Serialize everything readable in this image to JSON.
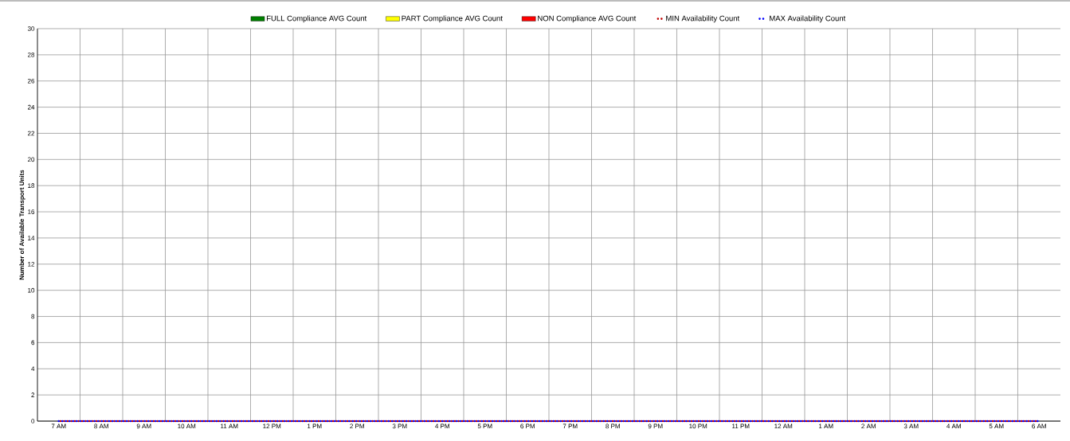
{
  "chart_data": {
    "type": "bar",
    "stacked": true,
    "ylabel": "Number of Available Transport Units",
    "categories": [
      "7 AM",
      "8 AM",
      "9 AM",
      "10 AM",
      "11 AM",
      "12 PM",
      "1 PM",
      "2 PM",
      "3 PM",
      "4 PM",
      "5 PM",
      "6 PM",
      "7 PM",
      "8 PM",
      "9 PM",
      "10 PM",
      "11 PM",
      "12 AM",
      "1 AM",
      "2 AM",
      "3 AM",
      "4 AM",
      "5 AM",
      "6 AM"
    ],
    "series": [
      {
        "name": "FULL Compliance AVG Count",
        "color": "#008000",
        "values": [
          0,
          0,
          0,
          0,
          0,
          0,
          0,
          0,
          0,
          0,
          0,
          0,
          0,
          0,
          0,
          0,
          0,
          0,
          0,
          0,
          0,
          0,
          0,
          0
        ]
      },
      {
        "name": "PART Compliance AVG Count",
        "color": "#ffff00",
        "values": [
          0,
          0,
          0,
          0,
          0,
          0,
          0,
          0,
          0,
          0,
          0,
          0,
          0,
          0,
          0,
          0,
          0,
          0,
          0,
          0,
          0,
          0,
          0,
          0
        ]
      },
      {
        "name": "NON Compliance AVG Count",
        "color": "#ff0000",
        "values": [
          0,
          0,
          0,
          0,
          0,
          0,
          0,
          0,
          0,
          0,
          0,
          0,
          0,
          0,
          0,
          0,
          0,
          0,
          0,
          0,
          0,
          0,
          0,
          0
        ]
      },
      {
        "name": "MIN Availability Count",
        "type": "line",
        "line_style": "dotted",
        "color": "#c00000",
        "values": [
          0,
          0,
          0,
          0,
          0,
          0,
          0,
          0,
          0,
          0,
          0,
          0,
          0,
          0,
          0,
          0,
          0,
          0,
          0,
          0,
          0,
          0,
          0,
          0
        ]
      },
      {
        "name": "MAX Availability Count",
        "type": "line",
        "line_style": "dotted",
        "color": "#0000ff",
        "values": [
          0,
          0,
          0,
          0,
          0,
          0,
          0,
          0,
          0,
          0,
          0,
          0,
          0,
          0,
          0,
          0,
          0,
          0,
          0,
          0,
          0,
          0,
          0,
          0
        ]
      }
    ],
    "ylim": [
      0,
      30
    ],
    "yticks": [
      0,
      2,
      4,
      6,
      8,
      10,
      12,
      14,
      16,
      18,
      20,
      22,
      24,
      26,
      28,
      30
    ],
    "grid": true,
    "legend": "top",
    "marker": "none"
  }
}
